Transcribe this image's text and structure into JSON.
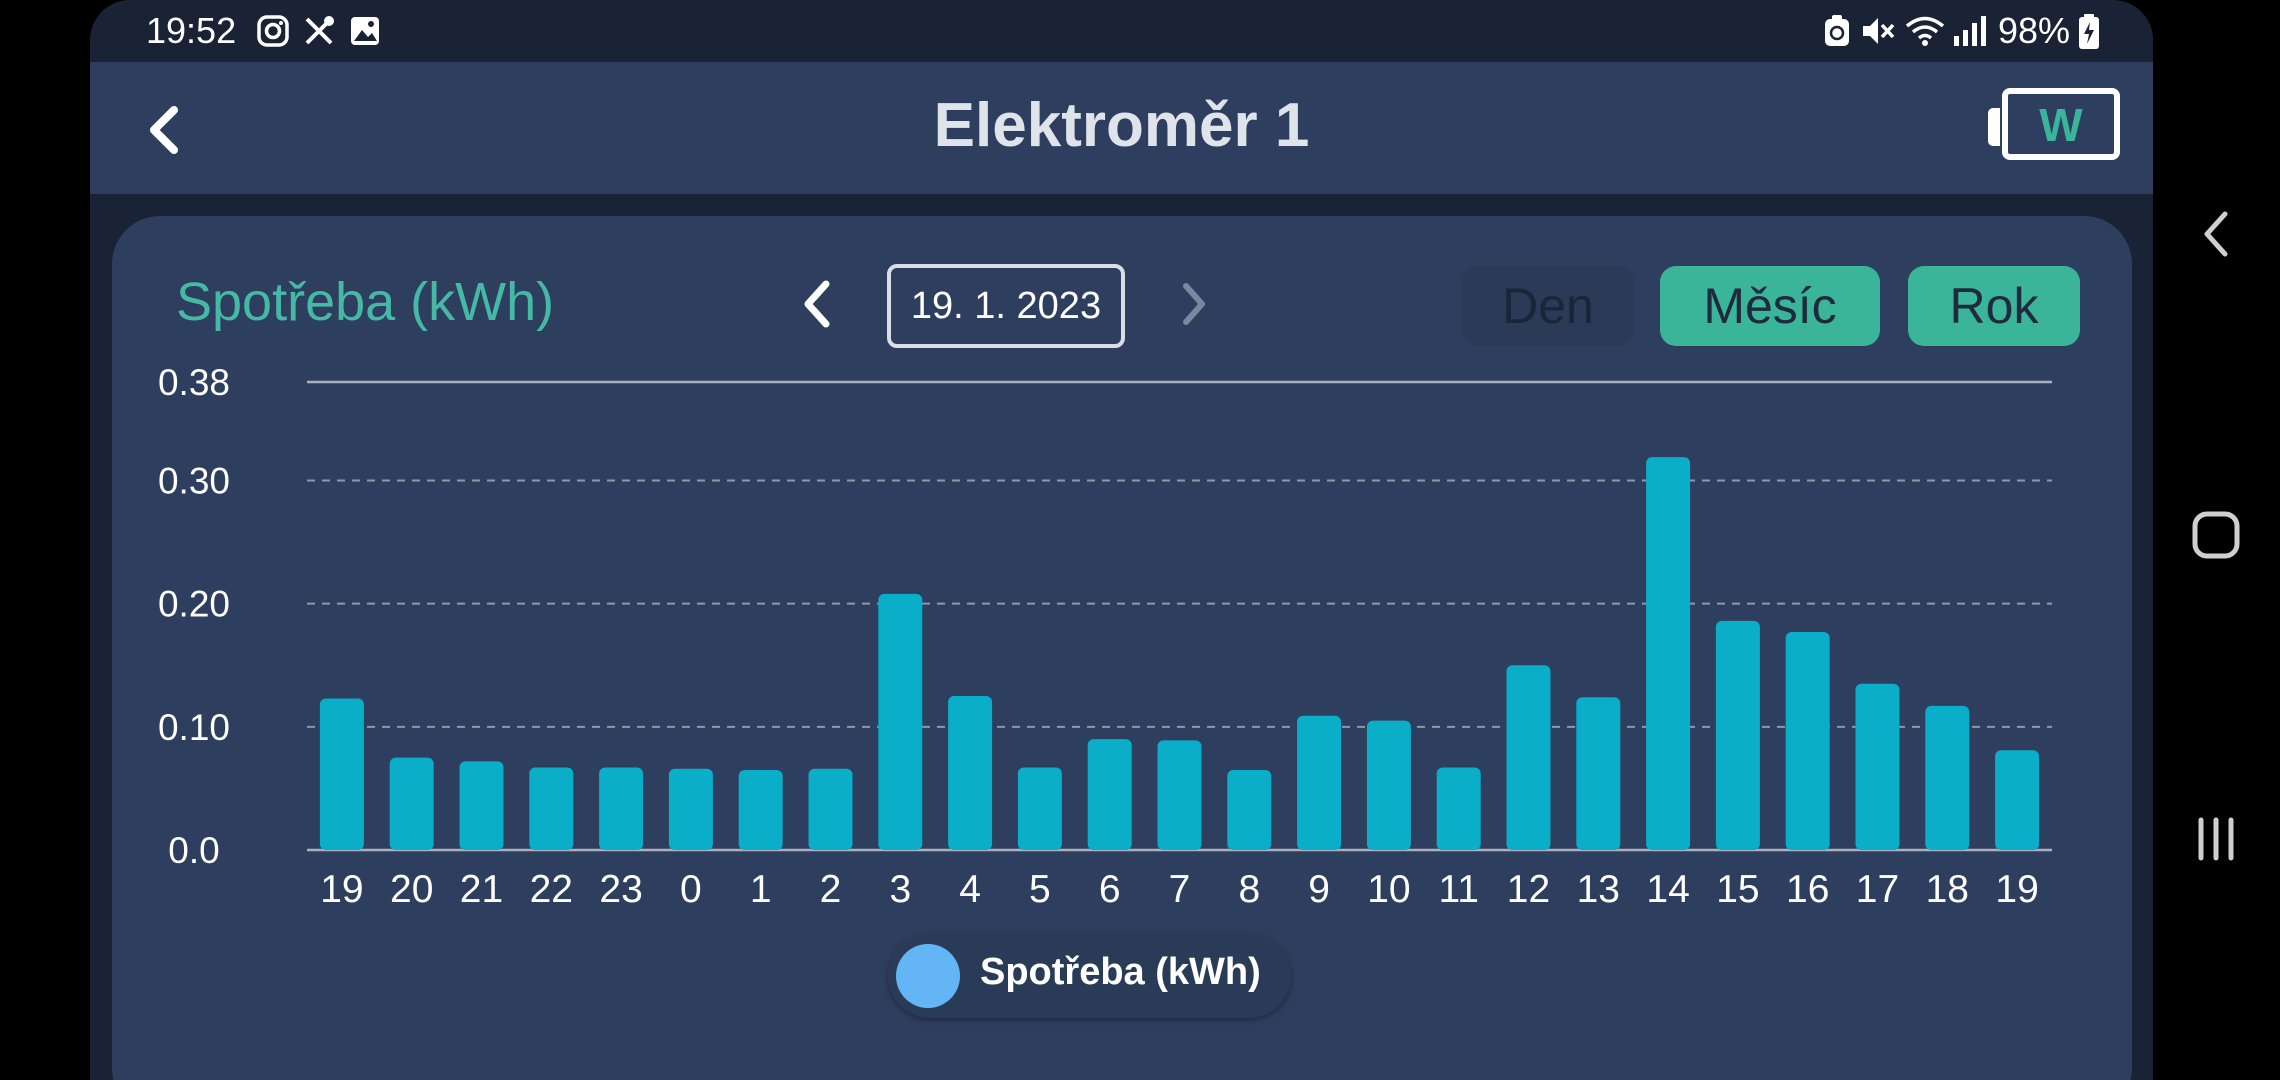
{
  "status_bar": {
    "time": "19:52",
    "left_icons": [
      "instagram-icon",
      "tools-icon",
      "image-icon"
    ],
    "right_icons": [
      "recycle-icon",
      "mute-icon",
      "wifi-icon",
      "signal-icon"
    ],
    "battery": "98%"
  },
  "app_bar": {
    "title": "Elektroměr 1",
    "logo_letter": "W"
  },
  "card": {
    "title": "Spotřeba (kWh)",
    "date": "19. 1. 2023",
    "buttons": {
      "day": "Den",
      "month": "Měsíc",
      "year": "Rok"
    },
    "legend": "Spotřeba (kWh)"
  },
  "colors": {
    "accent": "#3ab59a",
    "bar": "#0aaec8",
    "legend_dot": "#64b5f6",
    "card_bg": "#2e3e5e",
    "app_bg": "#1a2335"
  },
  "chart_data": {
    "type": "bar",
    "title": "Spotřeba (kWh)",
    "categories": [
      "19",
      "20",
      "21",
      "22",
      "23",
      "0",
      "1",
      "2",
      "3",
      "4",
      "5",
      "6",
      "7",
      "8",
      "9",
      "10",
      "11",
      "12",
      "13",
      "14",
      "15",
      "16",
      "17",
      "18",
      "19"
    ],
    "series": [
      {
        "name": "Spotřeba (kWh)",
        "values": [
          0.123,
          0.075,
          0.072,
          0.067,
          0.067,
          0.066,
          0.065,
          0.066,
          0.208,
          0.125,
          0.067,
          0.09,
          0.089,
          0.065,
          0.109,
          0.105,
          0.067,
          0.15,
          0.124,
          0.319,
          0.186,
          0.177,
          0.135,
          0.117,
          0.081
        ]
      }
    ],
    "y_ticks": [
      "0.0",
      "0.10",
      "0.20",
      "0.30",
      "0.38"
    ],
    "y_tick_values": [
      0,
      0.1,
      0.2,
      0.3,
      0.38
    ],
    "ylim": [
      0,
      0.38
    ],
    "grid": true,
    "legend_position": "bottom"
  },
  "nav_bar": [
    "back-nav-icon",
    "home-nav-icon",
    "recents-nav-icon"
  ]
}
